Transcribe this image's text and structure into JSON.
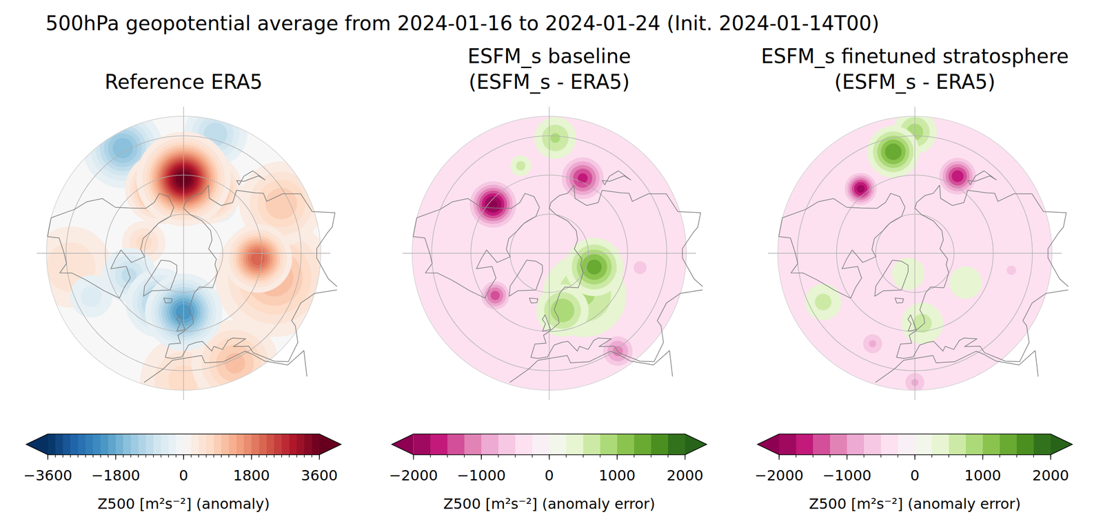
{
  "title": "500hPa geopotential average from 2024-01-16 to 2024-01-24 (Init. 2024-01-14T00)",
  "chart_data": [
    {
      "type": "map",
      "title": "Reference ERA5",
      "color": "RdBu_r",
      "lat_range": [
        20,
        90
      ],
      "lat_circles": [
        30,
        50,
        70
      ],
      "colorbar": {
        "range": [
          -3600,
          3600
        ],
        "step": 200,
        "ticks": [
          {
            "value": -3600,
            "label": "−3600"
          },
          {
            "value": -1800,
            "label": "−1800"
          },
          0,
          1800,
          3600
        ],
        "label": "Z500 [m²s⁻²] (anomaly)"
      },
      "anomalies": [
        {
          "lon": 0,
          "lat": 25,
          "value": 700,
          "sigma": 14
        },
        {
          "lon": -83,
          "lat": 32,
          "value": 600,
          "sigma": 14
        },
        {
          "lon": 75,
          "lat": 42,
          "value": 1200,
          "sigma": 16
        },
        {
          "lon": 117,
          "lat": 34,
          "value": 1000,
          "sigma": 12
        },
        {
          "lon": 25,
          "lat": 28,
          "value": 1100,
          "sigma": 12
        },
        {
          "lon": -65,
          "lat": 38,
          "value": -500,
          "sigma": 8
        },
        {
          "lon": -105,
          "lat": 69,
          "value": 700,
          "sigma": 7
        },
        {
          "lon": -150,
          "lat": 28,
          "value": -1600,
          "sigma": 10
        },
        {
          "lon": 165,
          "lat": 27,
          "value": -1000,
          "sigma": 9
        },
        {
          "lon": 145,
          "lat": 59,
          "value": -700,
          "sigma": 6
        },
        {
          "lon": -68,
          "lat": 60,
          "value": -900,
          "sigma": 8
        },
        {
          "lon": -25,
          "lat": 62,
          "value": -1400,
          "sigma": 9
        },
        {
          "lon": 0,
          "lat": 60,
          "value": -2200,
          "sigma": 9
        },
        {
          "lon": 86,
          "lat": 52,
          "value": 2200,
          "sigma": 8
        },
        {
          "lon": 160,
          "lat": 55,
          "value": 2500,
          "sigma": 8
        },
        {
          "lon": -160,
          "lat": 55,
          "value": 2500,
          "sigma": 8
        },
        {
          "lon": 180,
          "lat": 52,
          "value": 3700,
          "sigma": 10
        }
      ]
    },
    {
      "type": "map",
      "title": "ESFM_s baseline",
      "subtitle": "(ESFM_s - ERA5)",
      "color": "PiYG",
      "lat_range": [
        20,
        90
      ],
      "lat_circles": [
        30,
        50,
        70
      ],
      "colorbar": {
        "range": [
          -2000,
          2000
        ],
        "step": 250,
        "ticks": [
          {
            "value": -2000,
            "label": "−2000"
          },
          {
            "value": -1000,
            "label": "−1000"
          },
          0,
          1000,
          2000
        ],
        "label": "Z500 [m²s⁻²] (anomaly error)"
      },
      "anomalies": [
        {
          "lon": 0,
          "lat": 90,
          "value": -300,
          "sigma": 150
        },
        {
          "lon": 40,
          "lat": 62,
          "value": 800,
          "sigma": 14
        },
        {
          "lon": 73,
          "lat": 66,
          "value": 1400,
          "sigma": 8
        },
        {
          "lon": 13,
          "lat": 60,
          "value": 1000,
          "sigma": 8
        },
        {
          "lon": 177,
          "lat": 31,
          "value": 800,
          "sigma": 7
        },
        {
          "lon": -162,
          "lat": 43,
          "value": 600,
          "sigma": 4
        },
        {
          "lon": -131,
          "lat": 52,
          "value": -2100,
          "sigma": 7
        },
        {
          "lon": 156,
          "lat": 48,
          "value": -1600,
          "sigma": 7
        },
        {
          "lon": -52,
          "lat": 55,
          "value": -1400,
          "sigma": 5
        },
        {
          "lon": 35,
          "lat": 29,
          "value": -1100,
          "sigma": 6
        },
        {
          "lon": 81,
          "lat": 43,
          "value": -700,
          "sigma": 4
        }
      ]
    },
    {
      "type": "map",
      "title": "ESFM_s finetuned stratosphere",
      "subtitle": "(ESFM_s - ERA5)",
      "color": "PiYG",
      "lat_range": [
        20,
        90
      ],
      "lat_circles": [
        30,
        50,
        70
      ],
      "colorbar": {
        "range": [
          -2000,
          2000
        ],
        "step": 250,
        "ticks": [
          {
            "value": -2000,
            "label": "−2000"
          },
          {
            "value": -1000,
            "label": "−1000"
          },
          0,
          1000,
          2000
        ],
        "label": "Z500 [m²s⁻²] (anomaly error)"
      },
      "anomalies": [
        {
          "lon": 0,
          "lat": 90,
          "value": -300,
          "sigma": 150
        },
        {
          "lon": 180,
          "lat": 28,
          "value": 900,
          "sigma": 7
        },
        {
          "lon": -168,
          "lat": 37,
          "value": 1500,
          "sigma": 7
        },
        {
          "lon": -18,
          "lat": 79,
          "value": 500,
          "sigma": 7
        },
        {
          "lon": 6,
          "lat": 54,
          "value": 600,
          "sigma": 8
        },
        {
          "lon": -62,
          "lat": 37,
          "value": 600,
          "sigma": 7
        },
        {
          "lon": 60,
          "lat": 60,
          "value": 500,
          "sigma": 7
        },
        {
          "lon": -140,
          "lat": 47,
          "value": -1900,
          "sigma": 5
        },
        {
          "lon": 151,
          "lat": 45,
          "value": -1700,
          "sigma": 6
        },
        {
          "lon": -25,
          "lat": 39,
          "value": -800,
          "sigma": 5
        },
        {
          "lon": 0,
          "lat": 24,
          "value": -800,
          "sigma": 5
        },
        {
          "lon": 80,
          "lat": 40,
          "value": -600,
          "sigma": 4
        }
      ]
    }
  ]
}
